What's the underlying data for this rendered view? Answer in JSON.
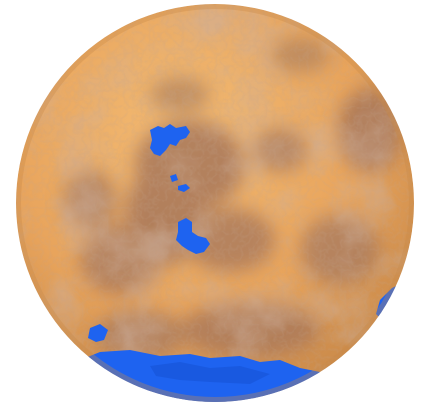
{
  "scene": {
    "background_color": "#ffffff",
    "subject": "planet-globe",
    "colors": {
      "surface": "#e8a45c",
      "surface_light": "#f3bb74",
      "dark_terrain": "#9f7058",
      "water": "#1e63f0",
      "water_dark": "#1554d6",
      "rim_shadow": "#c98949"
    }
  }
}
